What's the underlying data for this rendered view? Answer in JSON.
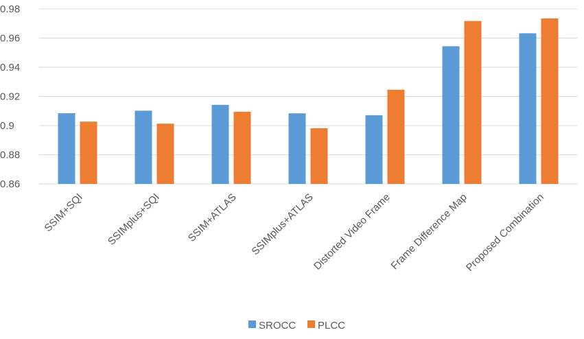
{
  "chart_data": {
    "type": "bar",
    "categories": [
      "SSIM+SQI",
      "SSIMplus+SQI",
      "SSIM+ATLAS",
      "SSIMplus+ATLAS",
      "Distorted Video Frame",
      "Frame Difference Map",
      "Proposed Combination"
    ],
    "series": [
      {
        "name": "SROCC",
        "color": "#5b9bd5",
        "values": [
          0.9085,
          0.9102,
          0.9142,
          0.9084,
          0.9071,
          0.9544,
          0.9633
        ]
      },
      {
        "name": "PLCC",
        "color": "#ed7d31",
        "values": [
          0.9027,
          0.9013,
          0.9095,
          0.8982,
          0.9246,
          0.9717,
          0.9735
        ]
      }
    ],
    "ylim": [
      0.86,
      0.98
    ],
    "yticks": [
      "0.86",
      "0.88",
      "0.9",
      "0.92",
      "0.94",
      "0.96",
      "0.98"
    ],
    "grid": true,
    "legend": "bottom-center"
  }
}
